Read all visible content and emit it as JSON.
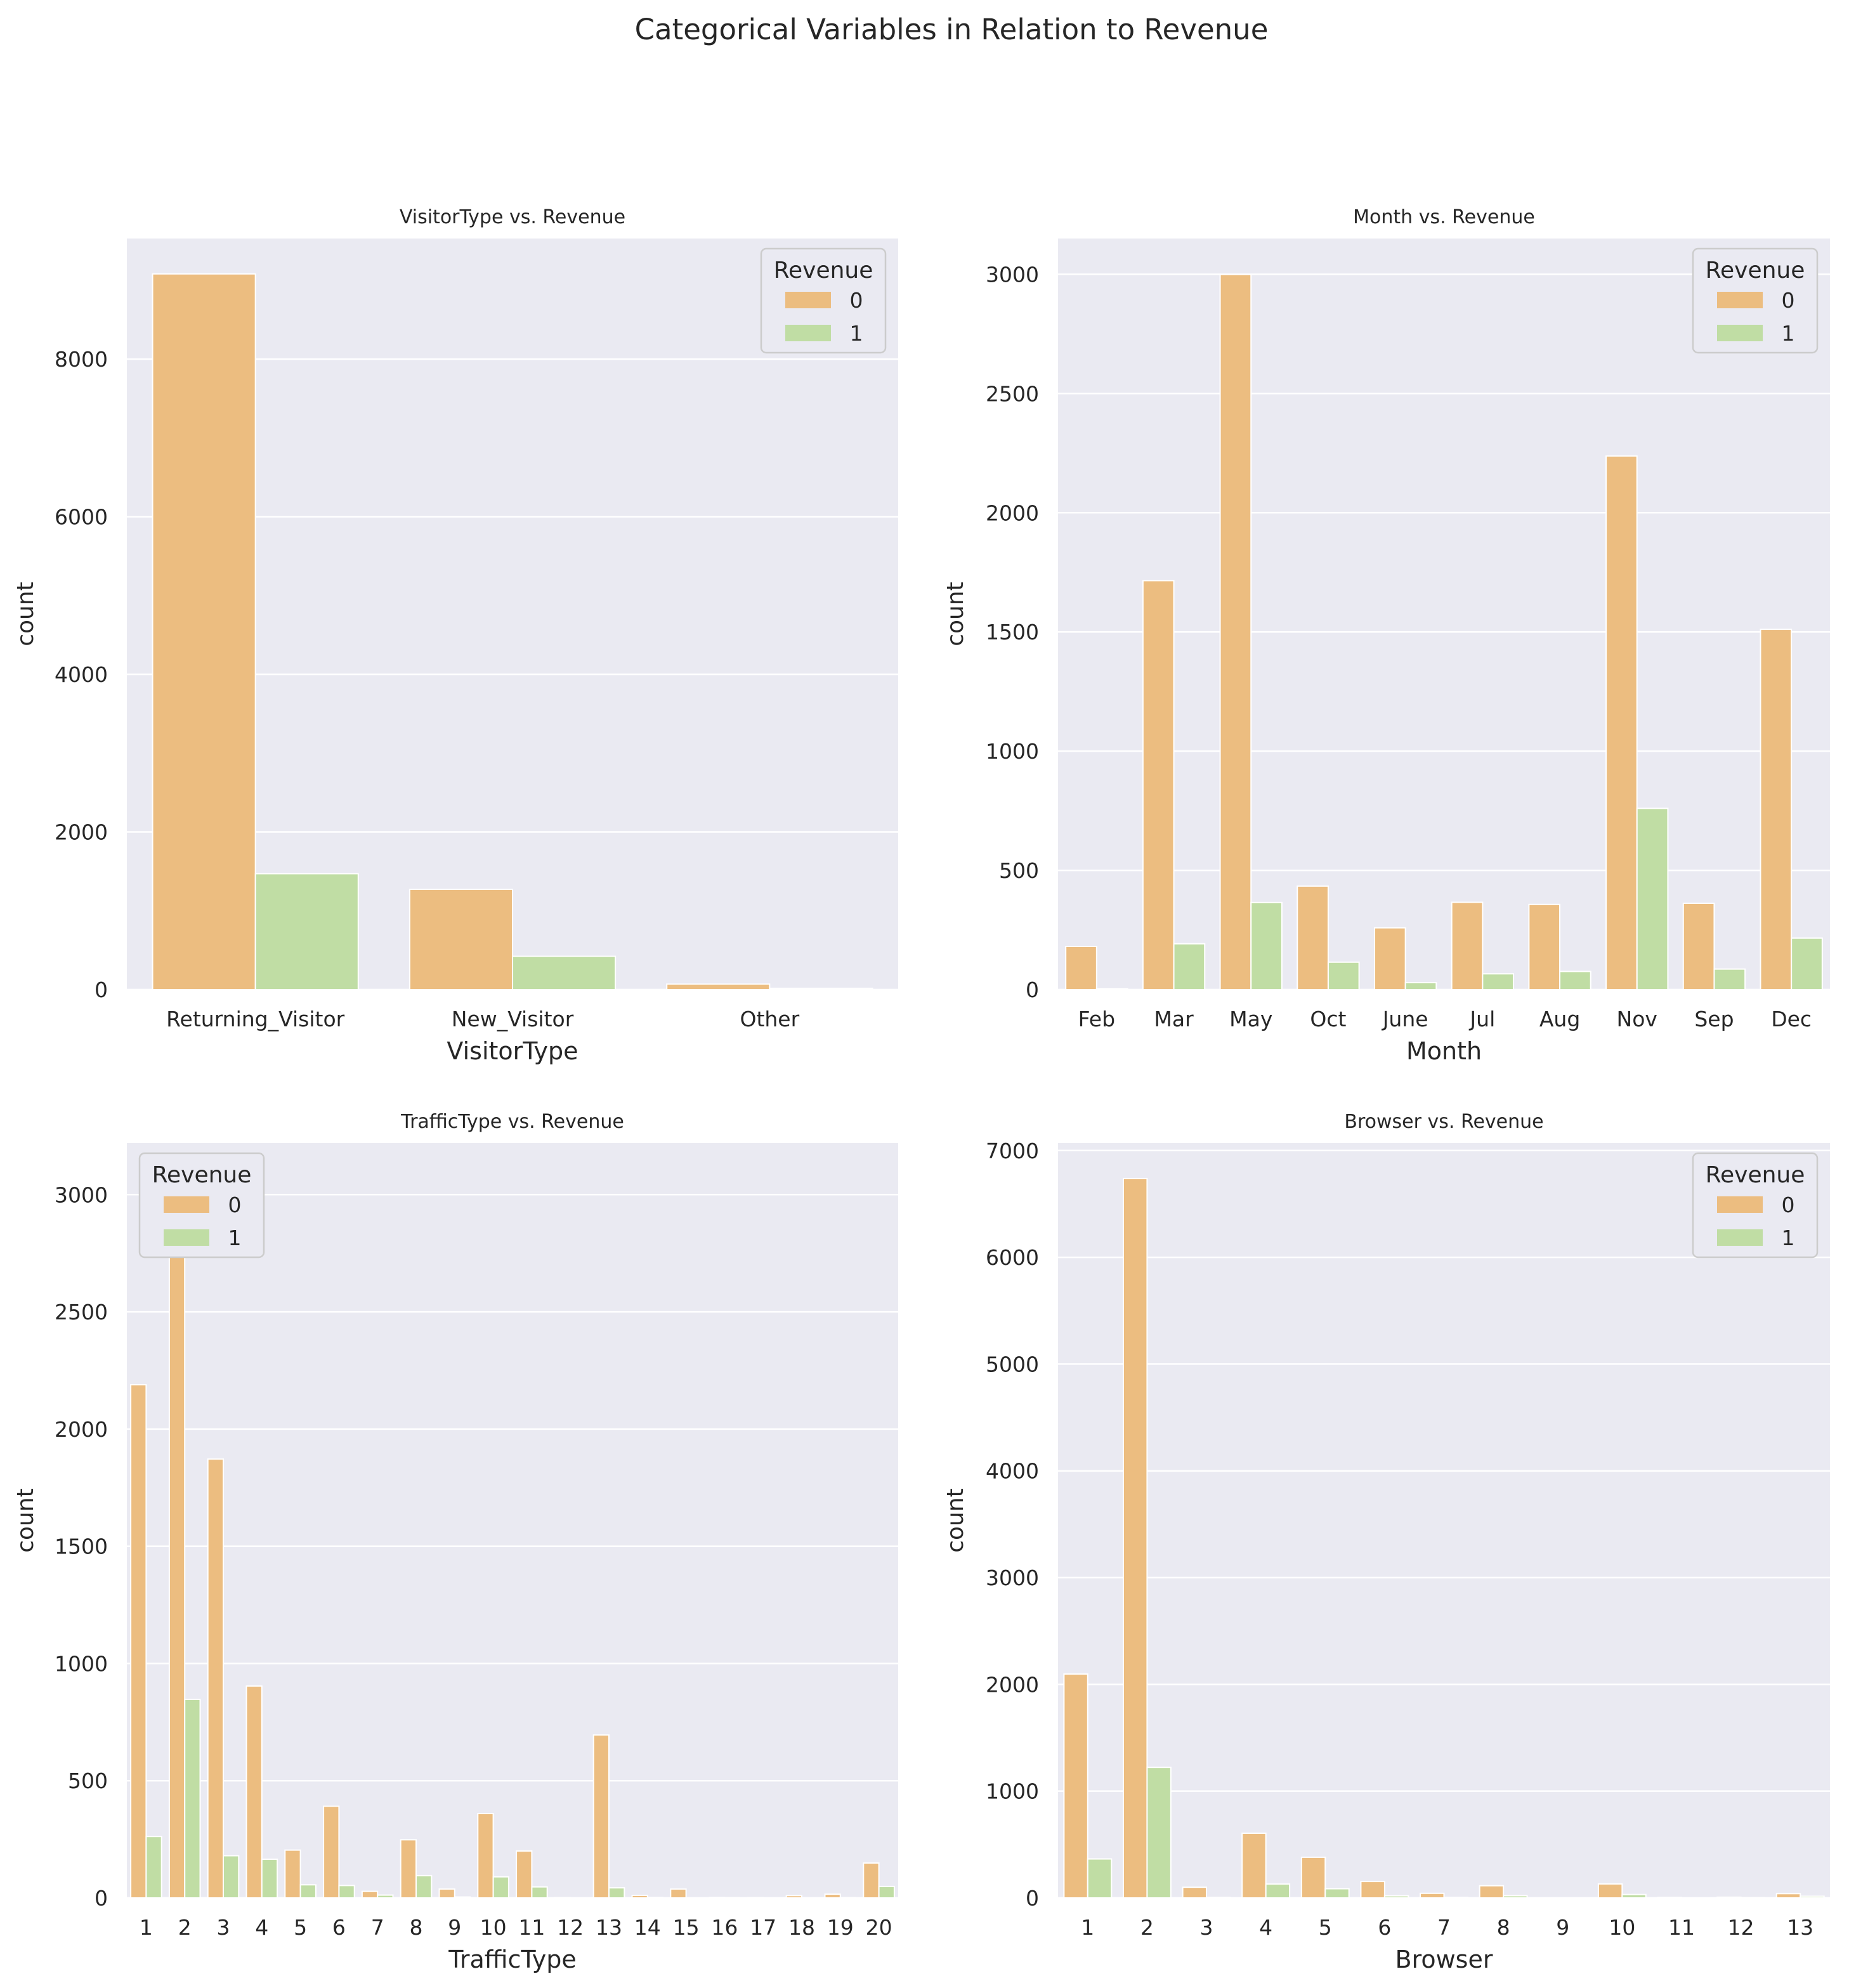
{
  "suptitle": "Categorical Variables in Relation to Revenue",
  "colors": {
    "plot_bg": "#eaeaf2",
    "grid": "#ffffff",
    "text": "#262626",
    "series_0": "#ecbd80",
    "series_1": "#c0dda4",
    "legend_bg": "#eaeaf2",
    "legend_border": "#cccccc"
  },
  "chart_data": [
    {
      "type": "bar",
      "title": "VisitorType vs. Revenue",
      "xlabel": "VisitorType",
      "ylabel": "count",
      "categories": [
        "Returning_Visitor",
        "New_Visitor",
        "Other"
      ],
      "series": [
        {
          "name": "0",
          "values": [
            9081,
            1272,
            69
          ]
        },
        {
          "name": "1",
          "values": [
            1470,
            422,
            16
          ]
        }
      ],
      "ylim": [
        0,
        9530
      ],
      "yticks": [
        0,
        2000,
        4000,
        6000,
        8000
      ],
      "legend": {
        "title": "Revenue",
        "position": "top-right"
      }
    },
    {
      "type": "bar",
      "title": "Month vs. Revenue",
      "xlabel": "Month",
      "ylabel": "count",
      "categories": [
        "Feb",
        "Mar",
        "May",
        "Oct",
        "June",
        "Jul",
        "Aug",
        "Nov",
        "Sep",
        "Dec"
      ],
      "series": [
        {
          "name": "0",
          "values": [
            181,
            1715,
            2999,
            434,
            259,
            366,
            357,
            2238,
            362,
            1511
          ]
        },
        {
          "name": "1",
          "values": [
            3,
            192,
            365,
            115,
            29,
            66,
            76,
            760,
            86,
            216
          ]
        }
      ],
      "ylim": [
        0,
        3150
      ],
      "yticks": [
        0,
        500,
        1000,
        1500,
        2000,
        2500,
        3000
      ],
      "legend": {
        "title": "Revenue",
        "position": "top-right"
      }
    },
    {
      "type": "bar",
      "title": "TrafficType vs. Revenue",
      "xlabel": "TrafficType",
      "ylabel": "count",
      "categories": [
        "1",
        "2",
        "3",
        "4",
        "5",
        "6",
        "7",
        "8",
        "9",
        "10",
        "11",
        "12",
        "13",
        "14",
        "15",
        "16",
        "17",
        "18",
        "19",
        "20"
      ],
      "series": [
        {
          "name": "0",
          "values": [
            2189,
            3066,
            1872,
            904,
            204,
            391,
            28,
            248,
            38,
            360,
            200,
            1,
            695,
            11,
            38,
            2,
            1,
            10,
            16,
            149
          ]
        },
        {
          "name": "1",
          "values": [
            262,
            847,
            180,
            165,
            56,
            53,
            12,
            95,
            4,
            90,
            47,
            0,
            43,
            2,
            0,
            1,
            0,
            0,
            1,
            49
          ]
        }
      ],
      "ylim": [
        0,
        3220
      ],
      "yticks": [
        0,
        500,
        1000,
        1500,
        2000,
        2500,
        3000
      ],
      "legend": {
        "title": "Revenue",
        "position": "top-left"
      }
    },
    {
      "type": "bar",
      "title": "Browser vs. Revenue",
      "xlabel": "Browser",
      "ylabel": "count",
      "categories": [
        "1",
        "2",
        "3",
        "4",
        "5",
        "6",
        "7",
        "8",
        "9",
        "10",
        "11",
        "12",
        "13"
      ],
      "series": [
        {
          "name": "0",
          "values": [
            2097,
            6738,
            100,
            606,
            381,
            154,
            43,
            114,
            1,
            131,
            5,
            7,
            40
          ]
        },
        {
          "name": "1",
          "values": [
            365,
            1223,
            5,
            130,
            86,
            20,
            6,
            21,
            0,
            32,
            1,
            3,
            16
          ]
        }
      ],
      "ylim": [
        0,
        7070
      ],
      "yticks": [
        0,
        1000,
        2000,
        3000,
        4000,
        5000,
        6000,
        7000
      ],
      "legend": {
        "title": "Revenue",
        "position": "top-right"
      }
    }
  ]
}
